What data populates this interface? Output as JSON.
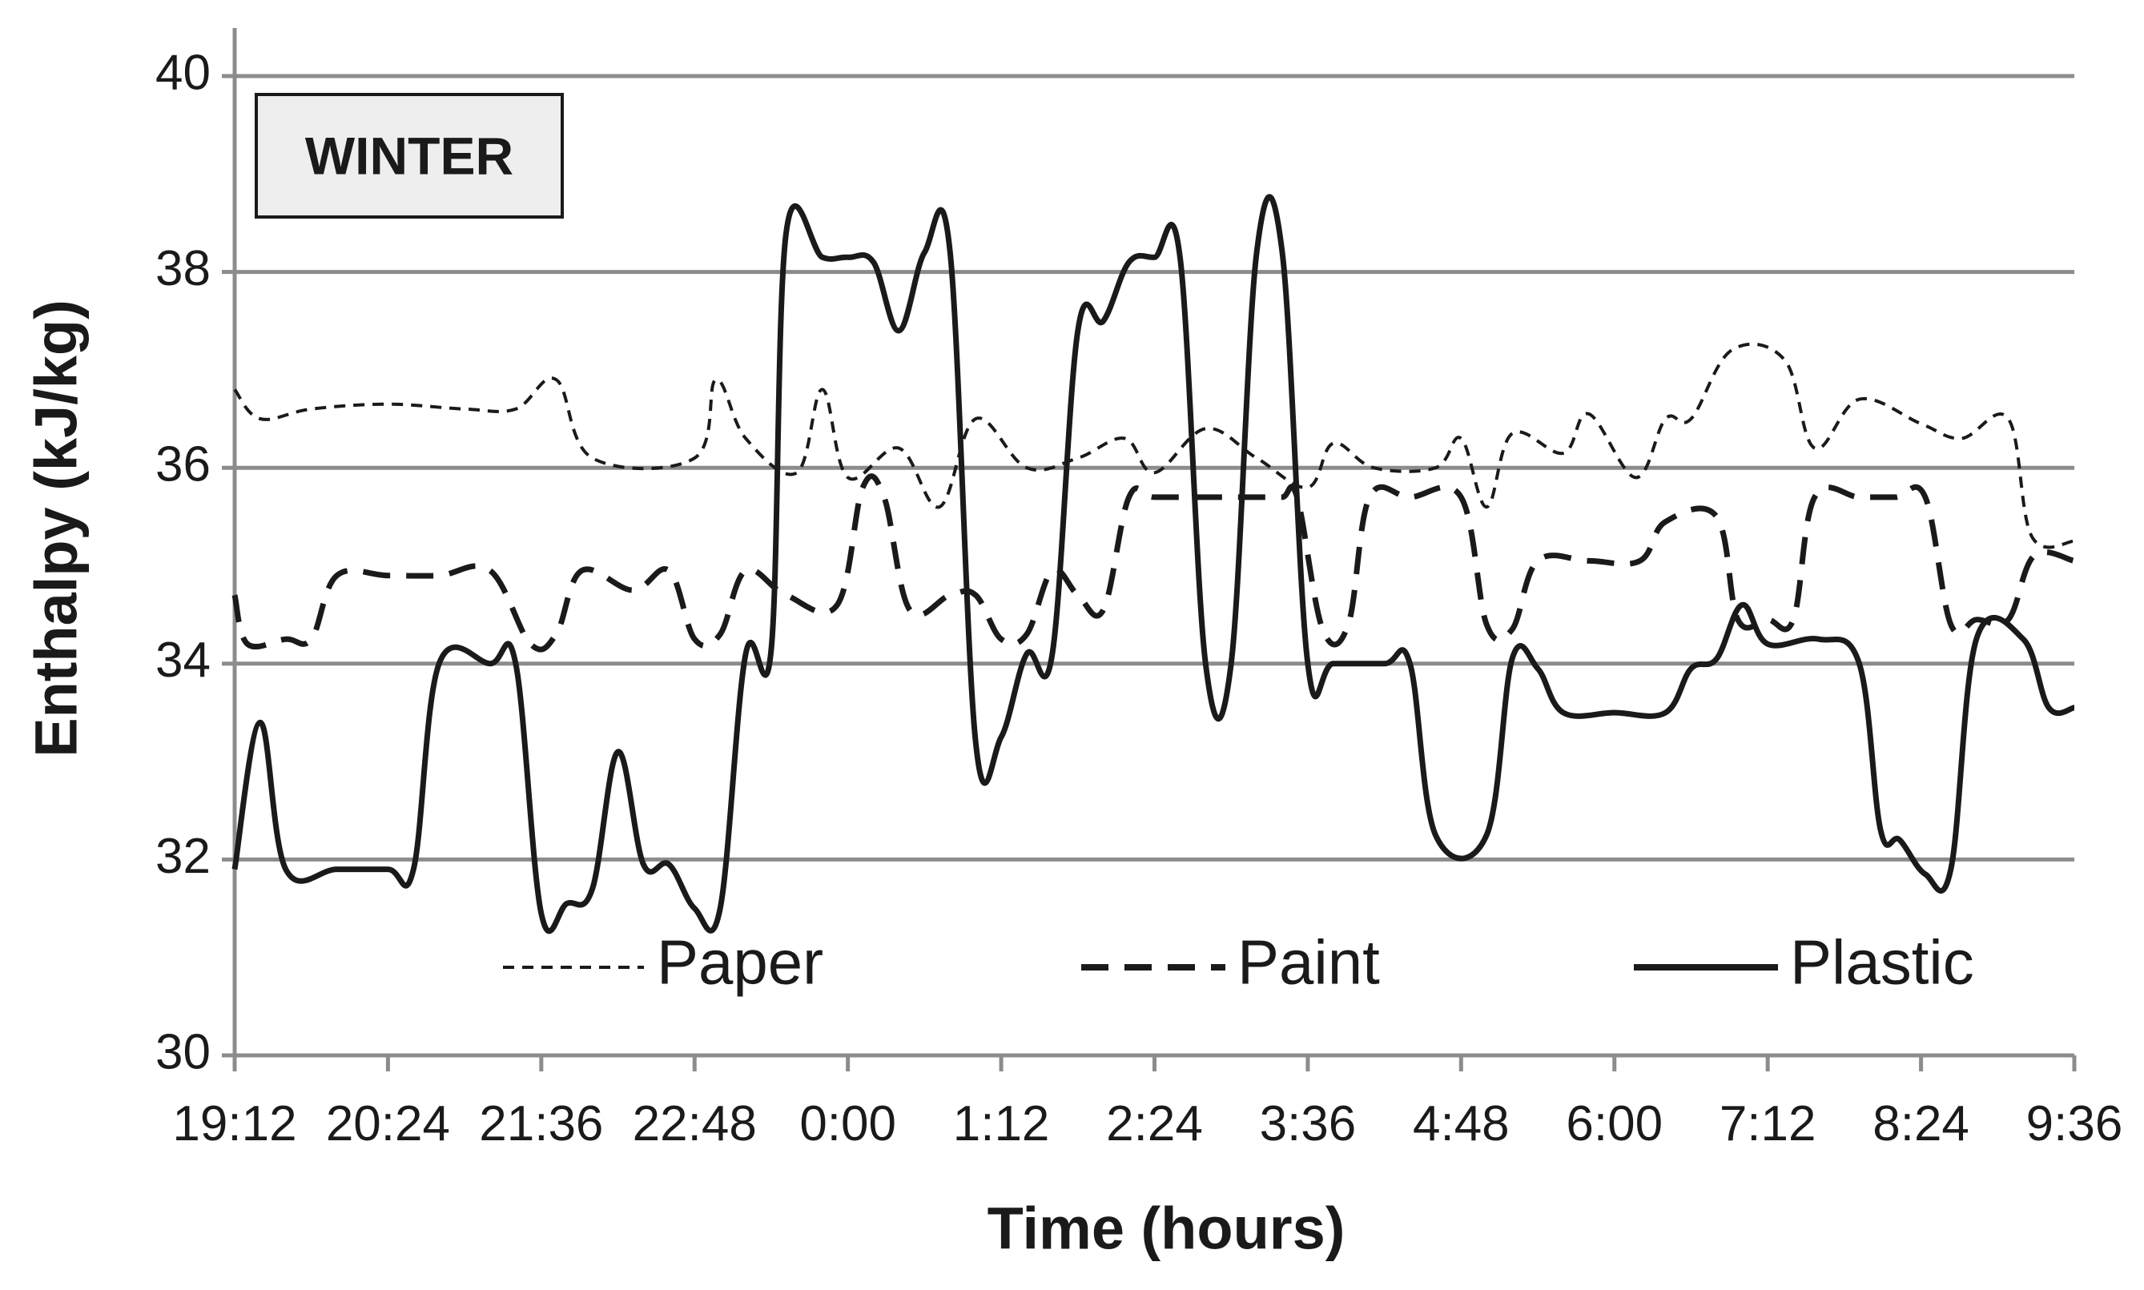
{
  "chart_data": {
    "type": "line",
    "annotation": "WINTER",
    "xlabel": "Time (hours)",
    "ylabel": "Enthalpy (kJ/kg)",
    "ylim": [
      30,
      40
    ],
    "yticks": [
      "30",
      "32",
      "34",
      "36",
      "38",
      "40"
    ],
    "xlim": [
      "19:12",
      "9:36"
    ],
    "xticks": [
      "19:12",
      "20:24",
      "21:36",
      "22:48",
      "0:00",
      "1:12",
      "2:24",
      "3:36",
      "4:48",
      "6:00",
      "7:12",
      "8:24",
      "9:36"
    ],
    "grid": "horizontal",
    "legend_position": "bottom",
    "series": [
      {
        "name": "Paper",
        "style": "fine-dash",
        "color": "#1a1a1a",
        "points": [
          [
            "19:12",
            36.8
          ],
          [
            "19:24",
            36.5
          ],
          [
            "19:48",
            36.6
          ],
          [
            "20:24",
            36.65
          ],
          [
            "21:00",
            36.6
          ],
          [
            "21:24",
            36.6
          ],
          [
            "21:43",
            36.9
          ],
          [
            "22:00",
            36.1
          ],
          [
            "22:48",
            36.1
          ],
          [
            "22:58",
            36.9
          ],
          [
            "23:12",
            36.3
          ],
          [
            "23:36",
            35.95
          ],
          [
            "23:48",
            36.8
          ],
          [
            "0:00",
            35.9
          ],
          [
            "0:24",
            36.2
          ],
          [
            "0:43",
            35.6
          ],
          [
            "1:00",
            36.5
          ],
          [
            "1:24",
            36.0
          ],
          [
            "1:48",
            36.1
          ],
          [
            "2:10",
            36.3
          ],
          [
            "2:24",
            35.95
          ],
          [
            "2:48",
            36.4
          ],
          [
            "3:12",
            36.1
          ],
          [
            "3:36",
            35.8
          ],
          [
            "3:48",
            36.25
          ],
          [
            "4:07",
            36.0
          ],
          [
            "4:36",
            36.0
          ],
          [
            "4:48",
            36.3
          ],
          [
            "5:00",
            35.6
          ],
          [
            "5:12",
            36.35
          ],
          [
            "5:36",
            36.15
          ],
          [
            "5:48",
            36.55
          ],
          [
            "6:10",
            35.9
          ],
          [
            "6:24",
            36.5
          ],
          [
            "6:36",
            36.5
          ],
          [
            "6:55",
            37.2
          ],
          [
            "7:20",
            37.1
          ],
          [
            "7:34",
            36.2
          ],
          [
            "7:55",
            36.7
          ],
          [
            "8:24",
            36.45
          ],
          [
            "8:43",
            36.3
          ],
          [
            "9:05",
            36.5
          ],
          [
            "9:16",
            35.3
          ],
          [
            "9:36",
            35.25
          ]
        ]
      },
      {
        "name": "Paint",
        "style": "dash",
        "color": "#1a1a1a",
        "points": [
          [
            "19:12",
            34.7
          ],
          [
            "19:18",
            34.2
          ],
          [
            "19:36",
            34.25
          ],
          [
            "19:48",
            34.25
          ],
          [
            "20:00",
            34.9
          ],
          [
            "20:24",
            34.9
          ],
          [
            "20:48",
            34.9
          ],
          [
            "21:12",
            34.95
          ],
          [
            "21:31",
            34.2
          ],
          [
            "21:43",
            34.3
          ],
          [
            "21:55",
            34.95
          ],
          [
            "22:19",
            34.75
          ],
          [
            "22:36",
            34.95
          ],
          [
            "22:48",
            34.25
          ],
          [
            "23:00",
            34.3
          ],
          [
            "23:12",
            34.95
          ],
          [
            "23:31",
            34.7
          ],
          [
            "23:55",
            34.6
          ],
          [
            "0:07",
            35.8
          ],
          [
            "0:17",
            35.7
          ],
          [
            "0:29",
            34.55
          ],
          [
            "0:48",
            34.7
          ],
          [
            "1:00",
            34.7
          ],
          [
            "1:12",
            34.25
          ],
          [
            "1:24",
            34.3
          ],
          [
            "1:36",
            34.95
          ],
          [
            "1:48",
            34.7
          ],
          [
            "2:00",
            34.55
          ],
          [
            "2:12",
            35.7
          ],
          [
            "2:24",
            35.7
          ],
          [
            "2:48",
            35.7
          ],
          [
            "3:12",
            35.7
          ],
          [
            "3:24",
            35.7
          ],
          [
            "3:31",
            35.7
          ],
          [
            "3:43",
            34.35
          ],
          [
            "3:55",
            34.4
          ],
          [
            "4:05",
            35.7
          ],
          [
            "4:24",
            35.7
          ],
          [
            "4:48",
            35.7
          ],
          [
            "5:00",
            34.4
          ],
          [
            "5:12",
            34.35
          ],
          [
            "5:24",
            35.05
          ],
          [
            "5:48",
            35.05
          ],
          [
            "6:12",
            35.05
          ],
          [
            "6:24",
            35.45
          ],
          [
            "6:48",
            35.5
          ],
          [
            "6:58",
            34.45
          ],
          [
            "7:12",
            34.45
          ],
          [
            "7:24",
            34.45
          ],
          [
            "7:34",
            35.7
          ],
          [
            "7:55",
            35.7
          ],
          [
            "8:12",
            35.7
          ],
          [
            "8:26",
            35.7
          ],
          [
            "8:38",
            34.4
          ],
          [
            "8:50",
            34.45
          ],
          [
            "9:05",
            34.45
          ],
          [
            "9:17",
            35.1
          ],
          [
            "9:36",
            35.05
          ]
        ]
      },
      {
        "name": "Plastic",
        "style": "solid",
        "color": "#1a1a1a",
        "points": [
          [
            "19:12",
            31.9
          ],
          [
            "19:24",
            33.4
          ],
          [
            "19:36",
            31.9
          ],
          [
            "20:00",
            31.9
          ],
          [
            "20:24",
            31.9
          ],
          [
            "20:36",
            31.9
          ],
          [
            "20:48",
            34.0
          ],
          [
            "21:12",
            34.0
          ],
          [
            "21:24",
            34.0
          ],
          [
            "21:36",
            31.45
          ],
          [
            "21:48",
            31.55
          ],
          [
            "22:00",
            31.7
          ],
          [
            "22:12",
            33.1
          ],
          [
            "22:24",
            31.95
          ],
          [
            "22:36",
            31.95
          ],
          [
            "22:48",
            31.5
          ],
          [
            "23:00",
            31.5
          ],
          [
            "23:12",
            34.1
          ],
          [
            "23:24",
            34.15
          ],
          [
            "23:31",
            38.4
          ],
          [
            "23:48",
            38.15
          ],
          [
            "0:00",
            38.15
          ],
          [
            "0:12",
            38.1
          ],
          [
            "0:24",
            37.4
          ],
          [
            "0:36",
            38.2
          ],
          [
            "0:48",
            38.2
          ],
          [
            "1:00",
            33.2
          ],
          [
            "1:12",
            33.25
          ],
          [
            "1:24",
            34.1
          ],
          [
            "1:36",
            34.1
          ],
          [
            "1:48",
            37.4
          ],
          [
            "2:00",
            37.5
          ],
          [
            "2:12",
            38.1
          ],
          [
            "2:24",
            38.15
          ],
          [
            "2:36",
            38.15
          ],
          [
            "2:48",
            34.0
          ],
          [
            "3:00",
            34.0
          ],
          [
            "3:12",
            38.2
          ],
          [
            "3:24",
            38.2
          ],
          [
            "3:36",
            34.0
          ],
          [
            "3:48",
            34.0
          ],
          [
            "4:12",
            34.0
          ],
          [
            "4:24",
            34.0
          ],
          [
            "4:36",
            32.25
          ],
          [
            "5:00",
            32.25
          ],
          [
            "5:12",
            34.05
          ],
          [
            "5:24",
            33.95
          ],
          [
            "5:36",
            33.5
          ],
          [
            "6:00",
            33.5
          ],
          [
            "6:24",
            33.5
          ],
          [
            "6:36",
            33.95
          ],
          [
            "6:48",
            34.05
          ],
          [
            "7:00",
            34.6
          ],
          [
            "7:12",
            34.2
          ],
          [
            "7:36",
            34.25
          ],
          [
            "7:55",
            34.0
          ],
          [
            "8:05",
            32.3
          ],
          [
            "8:14",
            32.2
          ],
          [
            "8:26",
            31.85
          ],
          [
            "8:38",
            31.9
          ],
          [
            "8:50",
            34.25
          ],
          [
            "9:12",
            34.25
          ],
          [
            "9:24",
            33.55
          ],
          [
            "9:36",
            33.55
          ]
        ]
      }
    ]
  }
}
